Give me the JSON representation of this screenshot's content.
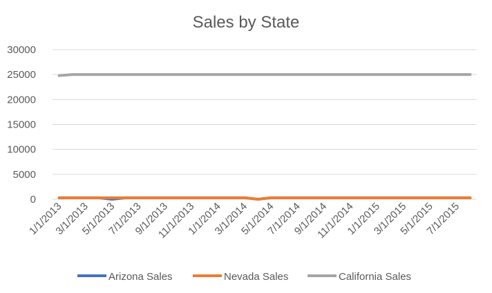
{
  "chart_data": {
    "type": "line",
    "title": "Sales by State",
    "xlabel": "",
    "ylabel": "",
    "ylim": [
      0,
      30000
    ],
    "y_ticks": [
      "30000",
      "25000",
      "20000",
      "15000",
      "10000",
      "5000",
      "0"
    ],
    "x": [
      "1/1/2013",
      "2/1/2013",
      "3/1/2013",
      "4/1/2013",
      "5/1/2013",
      "6/1/2013",
      "7/1/2013",
      "8/1/2013",
      "9/1/2013",
      "10/1/2013",
      "11/1/2013",
      "12/1/2013",
      "1/1/2014",
      "2/1/2014",
      "3/1/2014",
      "4/1/2014",
      "5/1/2014",
      "6/1/2014",
      "7/1/2014",
      "8/1/2014",
      "9/1/2014",
      "10/1/2014",
      "11/1/2014",
      "12/1/2014",
      "1/1/2015",
      "2/1/2015",
      "3/1/2015",
      "4/1/2015",
      "5/1/2015",
      "6/1/2015",
      "7/1/2015",
      "8/1/2015"
    ],
    "x_tick_labels": [
      "1/1/2013",
      "3/1/2013",
      "5/1/2013",
      "7/1/2013",
      "9/1/2013",
      "11/1/2013",
      "1/1/2014",
      "3/1/2014",
      "5/1/2014",
      "7/1/2014",
      "9/1/2014",
      "11/1/2014",
      "1/1/2015",
      "3/1/2015",
      "5/1/2015",
      "7/1/2015"
    ],
    "grid": true,
    "legend_position": "bottom",
    "series": [
      {
        "name": "Arizona Sales",
        "color": "#4472C4",
        "values": [
          300,
          300,
          300,
          300,
          0,
          300,
          300,
          300,
          300,
          300,
          300,
          300,
          300,
          300,
          300,
          0,
          300,
          300,
          300,
          300,
          300,
          300,
          300,
          300,
          300,
          300,
          300,
          300,
          300,
          300,
          300,
          300
        ]
      },
      {
        "name": "Nevada Sales",
        "color": "#ED7D31",
        "values": [
          300,
          300,
          300,
          300,
          300,
          300,
          300,
          300,
          300,
          300,
          300,
          300,
          300,
          300,
          300,
          0,
          300,
          300,
          300,
          300,
          300,
          300,
          300,
          300,
          300,
          300,
          300,
          300,
          300,
          300,
          300,
          300
        ]
      },
      {
        "name": "California Sales",
        "color": "#A5A5A5",
        "values": [
          24800,
          25000,
          25000,
          25000,
          25000,
          25000,
          25000,
          25000,
          25000,
          25000,
          25000,
          25000,
          25000,
          25000,
          25000,
          25000,
          25000,
          25000,
          25000,
          25000,
          25000,
          25000,
          25000,
          25000,
          25000,
          25000,
          25000,
          25000,
          25000,
          25000,
          25000,
          25000
        ]
      }
    ],
    "gridline_color": "#D9D9D9",
    "text_color": "#595959"
  }
}
